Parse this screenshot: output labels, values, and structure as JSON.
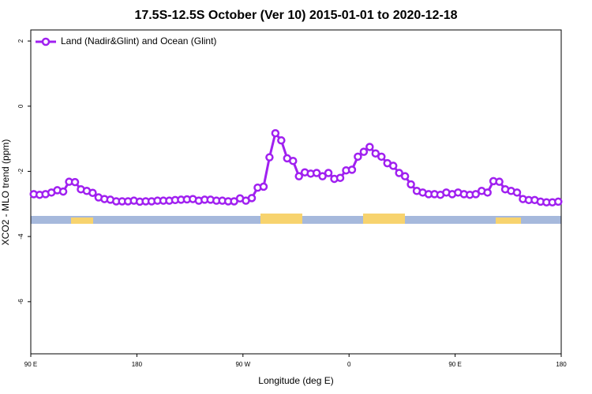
{
  "chart_data": {
    "type": "line",
    "title": "17.5S-12.5S October (Ver 10)   2015-01-01 to 2020-12-18",
    "x_label": "Longitude (deg E)",
    "y_label": "XCO2 - MLO trend (ppm)",
    "x": [
      92.5,
      97.5,
      102.5,
      107.5,
      112.5,
      117.5,
      122.5,
      127.5,
      132.5,
      137.5,
      142.5,
      147.5,
      152.5,
      157.5,
      162.5,
      167.5,
      172.5,
      177.5,
      182.5,
      187.5,
      192.5,
      197.5,
      202.5,
      207.5,
      212.5,
      217.5,
      222.5,
      227.5,
      232.5,
      237.5,
      242.5,
      247.5,
      252.5,
      257.5,
      262.5,
      267.5,
      272.5,
      277.5,
      282.5,
      287.5,
      292.5,
      297.5,
      302.5,
      307.5,
      312.5,
      317.5,
      322.5,
      327.5,
      332.5,
      337.5,
      342.5,
      347.5,
      352.5,
      357.5,
      362.5,
      367.5,
      372.5,
      377.5,
      382.5,
      387.5,
      392.5,
      397.5,
      402.5,
      407.5,
      412.5,
      417.5,
      422.5,
      427.5,
      432.5,
      437.5,
      442.5,
      447.5,
      452.5,
      457.5,
      462.5,
      467.5,
      472.5,
      477.5,
      482.5,
      487.5,
      492.5,
      497.5,
      502.5,
      507.5,
      512.5,
      517.5,
      522.5,
      527.5,
      532.5,
      537.5
    ],
    "series": [
      {
        "name": "Land (Nadir&Glint) and Ocean (Glint)",
        "color": "#a020f0",
        "values": [
          -2.7,
          -2.72,
          -2.7,
          -2.65,
          -2.58,
          -2.62,
          -2.32,
          -2.33,
          -2.55,
          -2.6,
          -2.66,
          -2.8,
          -2.85,
          -2.87,
          -2.92,
          -2.92,
          -2.92,
          -2.9,
          -2.93,
          -2.92,
          -2.92,
          -2.9,
          -2.9,
          -2.9,
          -2.88,
          -2.87,
          -2.86,
          -2.85,
          -2.9,
          -2.87,
          -2.87,
          -2.9,
          -2.9,
          -2.92,
          -2.92,
          -2.83,
          -2.9,
          -2.82,
          -2.5,
          -2.47,
          -1.57,
          -0.83,
          -1.05,
          -1.6,
          -1.68,
          -2.15,
          -2.03,
          -2.07,
          -2.05,
          -2.15,
          -2.05,
          -2.23,
          -2.2,
          -1.97,
          -1.95,
          -1.55,
          -1.4,
          -1.25,
          -1.45,
          -1.55,
          -1.75,
          -1.83,
          -2.05,
          -2.15,
          -2.4,
          -2.6,
          -2.65,
          -2.7,
          -2.7,
          -2.72,
          -2.65,
          -2.7,
          -2.65,
          -2.7,
          -2.72,
          -2.7,
          -2.6,
          -2.65,
          -2.3,
          -2.32,
          -2.55,
          -2.6,
          -2.65,
          -2.85,
          -2.88,
          -2.88,
          -2.93,
          -2.95,
          -2.95,
          -2.93
        ]
      }
    ],
    "xlim": [
      90,
      540
    ],
    "xticks": [
      {
        "value": 90,
        "label": "90 E"
      },
      180,
      {
        "value": 270,
        "label": "90 W"
      },
      {
        "value": 360,
        "label": "0"
      },
      {
        "value": 450,
        "label": "90 E"
      },
      {
        "value": 540,
        "label": "180"
      }
    ],
    "ylim": [
      -7.6,
      2.34
    ],
    "yticks": [
      -6,
      -4,
      -2,
      0,
      2
    ],
    "legend": "top-left"
  }
}
